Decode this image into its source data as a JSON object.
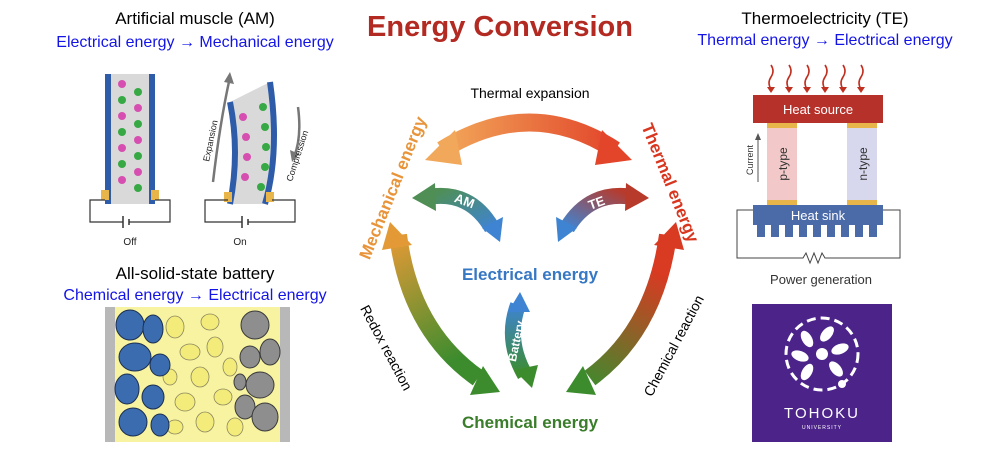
{
  "title": "Energy Conversion",
  "am": {
    "heading": "Artificial muscle (AM)",
    "conversion": "Electrical energy → Mechanical energy",
    "off_label": "Off",
    "on_label": "On",
    "expansion_label": "Expansion",
    "compression_label": "Compression"
  },
  "battery": {
    "heading": "All-solid-state battery",
    "conversion": "Chemical energy → Electrical energy"
  },
  "te": {
    "heading": "Thermoelectricity (TE)",
    "conversion": "Thermal energy → Electrical energy",
    "heat_source": "Heat source",
    "heat_sink": "Heat sink",
    "p_type": "p-type",
    "n_type": "n-type",
    "current": "Current",
    "power_generation": "Power generation"
  },
  "cycle": {
    "mechanical": "Mechanical energy",
    "thermal": "Thermal energy",
    "electrical": "Electrical energy",
    "chemical": "Chemical energy",
    "thermal_expansion": "Thermal expansion",
    "redox_reaction": "Redox reaction",
    "chemical_reaction": "Chemical reaction",
    "am_arrow": "AM",
    "te_arrow": "TE",
    "battery_arrow": "Battery"
  },
  "logo": {
    "name": "TOHOKU",
    "sub": "UNIVERSITY"
  },
  "colors": {
    "title": "#b22a22",
    "mechanical": "#e8943a",
    "thermal": "#d8361f",
    "electrical": "#3778c4",
    "chemical": "#3a7d2a",
    "conversion_text": "#1414e6",
    "logo_bg": "#4b2389"
  }
}
